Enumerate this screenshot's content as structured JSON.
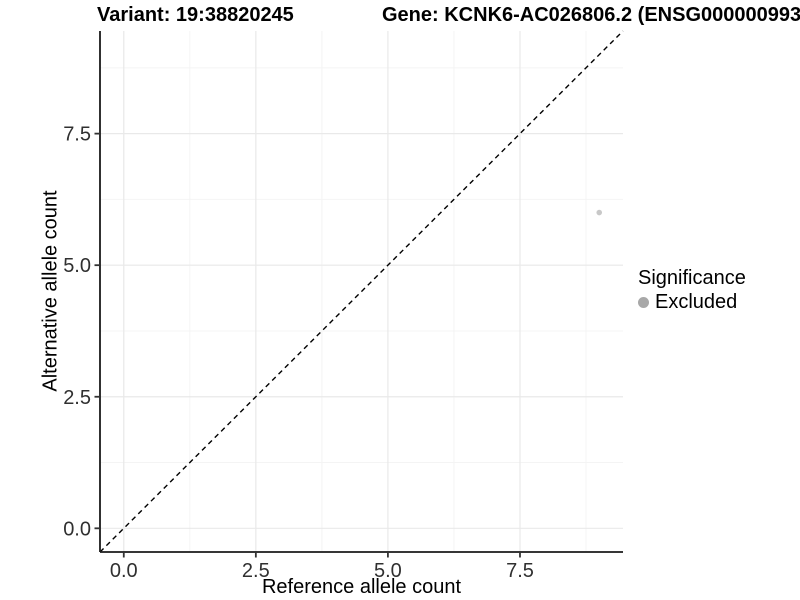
{
  "figure": {
    "title_left": "Variant: 19:38820245",
    "title_right": "Gene: KCNK6-AC026806.2 (ENSG000000993",
    "background": "#ffffff"
  },
  "chart_data": {
    "type": "scatter",
    "title": "Variant: 19:38820245    Gene: KCNK6-AC026806.2 (ENSG000000993",
    "xlabel": "Reference allele count",
    "ylabel": "Alternative allele count",
    "xlim": [
      -0.45,
      9.45
    ],
    "ylim": [
      -0.45,
      9.45
    ],
    "x_ticks": [
      0.0,
      2.5,
      5.0,
      7.5
    ],
    "y_ticks": [
      0.0,
      2.5,
      5.0,
      7.5
    ],
    "x_tick_labels": [
      "0.0",
      "2.5",
      "5.0",
      "7.5"
    ],
    "y_tick_labels": [
      "0.0",
      "2.5",
      "5.0",
      "7.5"
    ],
    "x_minor_ticks": [
      1.25,
      3.75,
      6.25,
      8.75
    ],
    "y_minor_ticks": [
      1.25,
      3.75,
      6.25,
      8.75
    ],
    "grid": "major+minor",
    "points": [
      {
        "x": 9,
        "y": 6,
        "series": "Excluded"
      }
    ],
    "reference_line": {
      "kind": "identity",
      "style": "dashed"
    },
    "legend": {
      "title": "Significance",
      "position": "right",
      "items": [
        {
          "label": "Excluded",
          "color": "#a8a8a8"
        }
      ]
    },
    "colors": {
      "point_fill": "#c8c8c8",
      "grid_major": "#e9e9e9",
      "grid_minor": "#f4f4f4",
      "axis_line": "#1a1a1a",
      "tick_mark": "#333333",
      "tick_label": "#303030",
      "reference_line": "#000000"
    }
  }
}
